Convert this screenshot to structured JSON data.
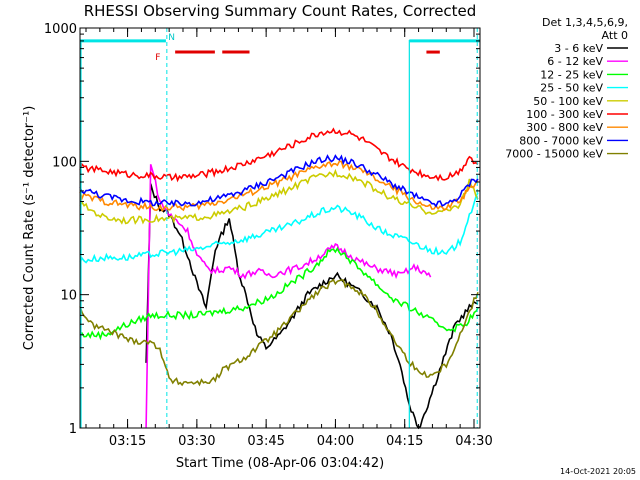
{
  "chart_data": {
    "type": "line",
    "title": "RHESSI Observing Summary Count Rates, Corrected",
    "ylabel": "Corrected Count Rate (s⁻¹ detector⁻¹)",
    "xlabel": "Start Time (08-Apr-06 03:04:42)",
    "yscale": "log",
    "ylim": [
      1,
      1000
    ],
    "xlim_minutes": [
      64.7,
      151.3
    ],
    "x_unit": "minutes after 02:00 UT",
    "x_ticks": [
      {
        "label": "03:15",
        "value": 75
      },
      {
        "label": "03:30",
        "value": 90
      },
      {
        "label": "03:45",
        "value": 105
      },
      {
        "label": "04:00",
        "value": 120
      },
      {
        "label": "04:15",
        "value": 135
      },
      {
        "label": "04:30",
        "value": 150
      }
    ],
    "y_ticks": [
      {
        "label": "1",
        "value": 1
      },
      {
        "label": "10",
        "value": 10
      },
      {
        "label": "100",
        "value": 100
      },
      {
        "label": "1000",
        "value": 1000
      }
    ],
    "legend_header": [
      "Det 1,3,4,5,6,9,",
      "Att 0"
    ],
    "legend_position": "right",
    "flags": {
      "cyan_bars": [
        [
          64.7,
          83.3
        ],
        [
          136.0,
          151.3
        ]
      ],
      "cyan_label": "N",
      "cyan_label_at": 82.5,
      "red_bars": [
        [
          85.3,
          93.9
        ],
        [
          95.5,
          101.4
        ],
        [
          139.7,
          142.6
        ]
      ],
      "red_label": "F",
      "red_label_at": 83.8,
      "level_cyan": 800,
      "level_red": 660
    },
    "vlines_dashed": [
      83.5,
      150.7
    ],
    "vline_solid": 136.0,
    "series": [
      {
        "name": "3 - 6 keV",
        "color": "#000000",
        "x": [
          64.7,
          70,
          76,
          79,
          80,
          82,
          84,
          86,
          88,
          90,
          92,
          94,
          97,
          99,
          101,
          103,
          105,
          108,
          111,
          114,
          117,
          120,
          123,
          126,
          129,
          132,
          134,
          136,
          138,
          140,
          143,
          146,
          149,
          151.3
        ],
        "y": [
          null,
          null,
          null,
          3,
          65,
          45,
          40,
          30,
          20,
          12,
          8,
          22,
          38,
          15,
          9,
          5,
          4,
          5,
          7,
          10,
          12,
          14,
          12,
          10,
          8,
          5,
          3,
          1.5,
          1,
          1.5,
          3,
          6,
          8,
          9
        ]
      },
      {
        "name": "6 - 12 keV",
        "color": "#ff00ff",
        "x": [
          64.7,
          79,
          80,
          81,
          82,
          84,
          86,
          88,
          90,
          92,
          94,
          97,
          100,
          103,
          106,
          109,
          112,
          115,
          118,
          120,
          122,
          125,
          128,
          131,
          134,
          137,
          139,
          141
        ],
        "y": [
          null,
          1,
          100,
          70,
          50,
          40,
          35,
          30,
          20,
          16,
          15,
          16,
          14,
          15,
          14,
          15,
          16,
          18,
          21,
          23,
          21,
          18,
          16,
          15,
          14,
          16,
          15,
          13
        ]
      },
      {
        "name": "12 - 25 keV",
        "color": "#00ff00",
        "x": [
          64.7,
          70,
          75,
          80,
          85,
          90,
          95,
          100,
          104,
          107,
          110,
          113,
          116,
          118,
          120,
          122,
          124,
          127,
          130,
          133,
          136,
          139,
          142,
          145,
          148,
          151.3
        ],
        "y": [
          5,
          5,
          6,
          7,
          7,
          7,
          7.5,
          8,
          9,
          10,
          12,
          14,
          17,
          20,
          22,
          20,
          17,
          14,
          11,
          9,
          8,
          7,
          6,
          5.5,
          6,
          8
        ]
      },
      {
        "name": "25 - 50 keV",
        "color": "#00ffff",
        "x": [
          64.7,
          70,
          75,
          80,
          85,
          90,
          95,
          100,
          105,
          110,
          114,
          117,
          120,
          123,
          126,
          130,
          135,
          140,
          144,
          147,
          149,
          151.3
        ],
        "y": [
          18,
          19,
          19,
          20,
          21,
          22,
          24,
          26,
          29,
          33,
          38,
          42,
          45,
          42,
          37,
          30,
          26,
          22,
          20,
          25,
          40,
          60
        ]
      },
      {
        "name": "50 - 100 keV",
        "color": "#cccc00",
        "x": [
          64.7,
          70,
          75,
          80,
          85,
          90,
          95,
          100,
          105,
          110,
          114,
          117,
          120,
          123,
          126,
          130,
          135,
          140,
          144,
          147,
          149,
          151.3
        ],
        "y": [
          48,
          38,
          36,
          37,
          37,
          38,
          40,
          45,
          52,
          62,
          72,
          78,
          82,
          78,
          70,
          58,
          48,
          42,
          42,
          48,
          70,
          50
        ]
      },
      {
        "name": "100 - 300 keV",
        "color": "#ff0000",
        "x": [
          64.7,
          70,
          75,
          80,
          85,
          90,
          95,
          100,
          105,
          110,
          114,
          117,
          120,
          123,
          126,
          130,
          135,
          140,
          144,
          147,
          149,
          151.3
        ],
        "y": [
          90,
          85,
          80,
          78,
          75,
          78,
          85,
          95,
          110,
          130,
          150,
          165,
          170,
          162,
          145,
          115,
          90,
          78,
          76,
          85,
          110,
          90
        ]
      },
      {
        "name": "300 - 800 keV",
        "color": "#ff8800",
        "x": [
          64.7,
          70,
          75,
          80,
          85,
          90,
          95,
          100,
          105,
          110,
          114,
          117,
          120,
          123,
          126,
          130,
          135,
          140,
          144,
          147,
          149,
          151.3
        ],
        "y": [
          56,
          50,
          47,
          45,
          45,
          46,
          50,
          56,
          64,
          75,
          85,
          93,
          96,
          92,
          84,
          70,
          56,
          45,
          44,
          52,
          62,
          70
        ]
      },
      {
        "name": "800 - 7000 keV",
        "color": "#0000ff",
        "x": [
          64.7,
          70,
          75,
          80,
          85,
          90,
          95,
          100,
          105,
          110,
          114,
          117,
          120,
          123,
          126,
          130,
          135,
          140,
          144,
          147,
          149,
          151.3
        ],
        "y": [
          62,
          55,
          51,
          49,
          48,
          49,
          53,
          60,
          70,
          82,
          95,
          103,
          106,
          100,
          90,
          75,
          60,
          49,
          47,
          55,
          68,
          78
        ]
      },
      {
        "name": "7000 - 15000 keV",
        "color": "#808000",
        "x": [
          64.7,
          67,
          70,
          73,
          76,
          79,
          82,
          84,
          86,
          88,
          91,
          94,
          96,
          98,
          101,
          103,
          105,
          108,
          111,
          114,
          117,
          120,
          123,
          126,
          129,
          132,
          135,
          138,
          141,
          144,
          147,
          150,
          151.3
        ],
        "y": [
          8,
          6,
          5.5,
          5,
          4.5,
          4.5,
          4,
          2.3,
          2.2,
          2.2,
          2.2,
          2.3,
          2.8,
          3,
          3.5,
          4,
          4.5,
          5.5,
          7,
          9,
          11,
          12.5,
          12,
          10,
          7.5,
          5,
          3.5,
          2.6,
          2.5,
          3,
          5,
          9,
          11
        ]
      }
    ]
  },
  "footer_date": "14-Oct-2021 20:05"
}
